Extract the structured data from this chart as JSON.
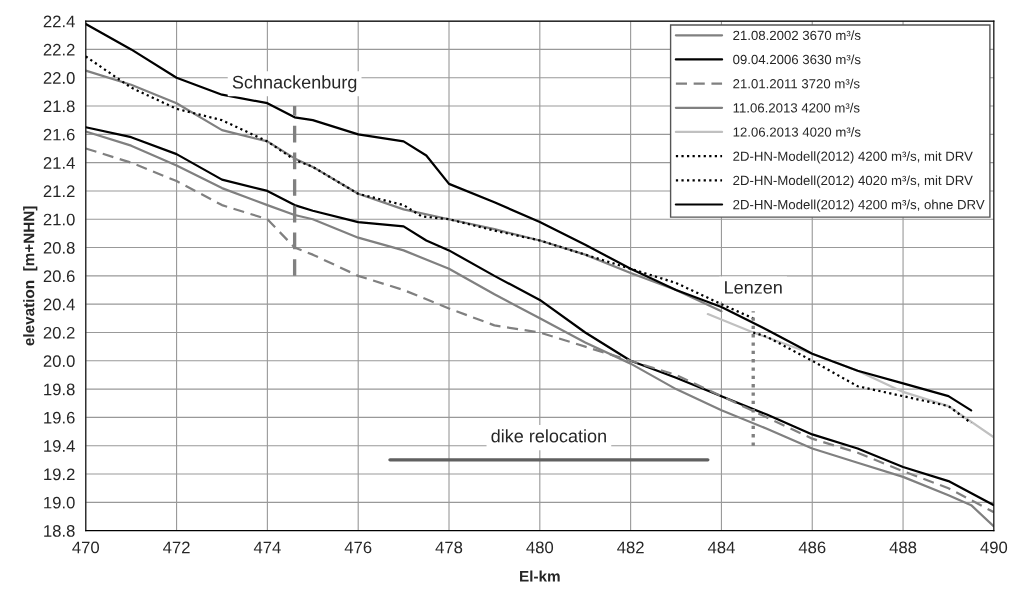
{
  "chart_data": {
    "type": "line",
    "xlabel": "El-km",
    "ylabel": "elevation  [m+NHN]",
    "xlim": [
      470,
      490
    ],
    "xticks": [
      470,
      472,
      474,
      476,
      478,
      480,
      482,
      484,
      486,
      488,
      490
    ],
    "ylim": [
      18.8,
      22.4
    ],
    "yticks": [
      {
        "value": 18.8,
        "label": "18.8"
      },
      {
        "value": 19.0,
        "label": "19.0"
      },
      {
        "value": 19.2,
        "label": "19.2"
      },
      {
        "value": 19.4,
        "label": "19.4"
      },
      {
        "value": 19.6,
        "label": "19.6"
      },
      {
        "value": 19.8,
        "label": "19.8"
      },
      {
        "value": 20.0,
        "label": "20.0"
      },
      {
        "value": 20.2,
        "label": "20.2"
      },
      {
        "value": 20.4,
        "label": "20.4"
      },
      {
        "value": 20.6,
        "label": "20.6"
      },
      {
        "value": 20.8,
        "label": "20.8"
      },
      {
        "value": 21.0,
        "label": "21.0"
      },
      {
        "value": 21.2,
        "label": "21.2"
      },
      {
        "value": 21.4,
        "label": "21.4"
      },
      {
        "value": 21.6,
        "label": "21.6"
      },
      {
        "value": 21.8,
        "label": "21.8"
      },
      {
        "value": 22.0,
        "label": "22.0"
      },
      {
        "value": 22.2,
        "label": "22.2"
      },
      {
        "value": 22.4,
        "label": "22.4"
      }
    ],
    "grid": true,
    "legend": "top right",
    "series": [
      {
        "name": "21.08.2002 3670 m³/s",
        "color": "#808080",
        "line_style": "solid",
        "x": [
          470,
          471,
          472,
          473,
          474,
          474.6,
          475,
          476,
          477,
          478,
          479,
          480,
          481,
          482,
          483,
          484,
          485,
          486,
          487,
          488,
          489,
          489.5,
          490
        ],
        "values": [
          21.62,
          21.52,
          21.38,
          21.22,
          21.1,
          21.03,
          21.0,
          20.87,
          20.78,
          20.65,
          20.47,
          20.3,
          20.13,
          19.98,
          19.8,
          19.65,
          19.52,
          19.38,
          19.28,
          19.18,
          19.05,
          18.98,
          18.83
        ]
      },
      {
        "name": "09.04.2006 3630 m³/s",
        "color": "#000000",
        "line_style": "solid",
        "x": [
          470,
          471,
          472,
          473,
          474,
          474.6,
          475,
          476,
          477,
          477.5,
          478,
          479,
          480,
          481,
          482,
          483,
          484,
          485,
          486,
          487,
          488,
          489,
          490
        ],
        "values": [
          21.65,
          21.58,
          21.46,
          21.28,
          21.2,
          21.1,
          21.06,
          20.98,
          20.95,
          20.85,
          20.78,
          20.6,
          20.43,
          20.2,
          20.0,
          19.88,
          19.75,
          19.62,
          19.48,
          19.38,
          19.25,
          19.15,
          18.98
        ]
      },
      {
        "name": "21.01.2011 3720 m³/s",
        "color": "#808080",
        "line_style": "dashed",
        "x": [
          470,
          471,
          472,
          473,
          474,
          474.6,
          475,
          476,
          477,
          478,
          479,
          480,
          481,
          482,
          483,
          484,
          485,
          486,
          487,
          488,
          489,
          490
        ],
        "values": [
          21.5,
          21.4,
          21.27,
          21.1,
          21.0,
          20.8,
          20.75,
          20.6,
          20.5,
          20.37,
          20.25,
          20.2,
          20.1,
          20.0,
          19.9,
          19.75,
          19.6,
          19.45,
          19.35,
          19.22,
          19.1,
          18.93
        ]
      },
      {
        "name": "11.06.2013 4200 m³/s",
        "color": "#808080",
        "line_style": "solid",
        "x": [
          470,
          471,
          472,
          473,
          474,
          474.6,
          475,
          476,
          477,
          478,
          479,
          480,
          481,
          482,
          483,
          484
        ],
        "values": [
          22.05,
          21.95,
          21.82,
          21.63,
          21.55,
          21.43,
          21.37,
          21.18,
          21.07,
          21.0,
          20.93,
          20.85,
          20.75,
          20.62,
          20.5,
          20.35
        ]
      },
      {
        "name": "12.06.2013 4020 m³/s",
        "color": "#c0c0c0",
        "line_style": "solid",
        "x": [
          483.7,
          484.7,
          486,
          487,
          488,
          489,
          490
        ],
        "values": [
          20.33,
          20.2,
          20.05,
          19.93,
          19.78,
          19.68,
          19.46
        ]
      },
      {
        "name": "2D-HN-Modell(2012) 4200 m³/s, mit DRV",
        "color": "#000000",
        "line_style": "dotted",
        "x": [
          470,
          471,
          472,
          473,
          474,
          474.6,
          475,
          476,
          477,
          477.4,
          478,
          479,
          480,
          481,
          482,
          483,
          484,
          484.7
        ],
        "values": [
          22.15,
          21.93,
          21.78,
          21.7,
          21.55,
          21.42,
          21.37,
          21.18,
          21.1,
          21.02,
          21.0,
          20.92,
          20.85,
          20.75,
          20.65,
          20.55,
          20.4,
          20.3
        ]
      },
      {
        "name": "2D-HN-Modell(2012) 4020 m³/s, mit DRV",
        "color": "#000000",
        "line_style": "dotted",
        "x": [
          484.7,
          485,
          486,
          487,
          488,
          489,
          489.5
        ],
        "values": [
          20.2,
          20.17,
          20.0,
          19.82,
          19.75,
          19.68,
          19.56
        ]
      },
      {
        "name": "2D-HN-Modell(2012) 4200 m³/s, ohne DRV",
        "color": "#000000",
        "line_style": "solid",
        "x": [
          470,
          471,
          472,
          473,
          474,
          474.6,
          475,
          476,
          477,
          477.5,
          478,
          479,
          480,
          481,
          482,
          483,
          484,
          485,
          486,
          487,
          488,
          489,
          489.5
        ],
        "values": [
          22.38,
          22.2,
          22.0,
          21.88,
          21.82,
          21.72,
          21.7,
          21.6,
          21.55,
          21.45,
          21.25,
          21.12,
          20.98,
          20.82,
          20.65,
          20.5,
          20.38,
          20.22,
          20.05,
          19.93,
          19.84,
          19.75,
          19.65
        ]
      },
      {
        "color": "#808080",
        "line_style": "dashed",
        "x": [
          474.6,
          474.6
        ],
        "values": [
          20.6,
          21.8
        ]
      },
      {
        "color": "#808080",
        "line_style": "dotted",
        "x": [
          484.7,
          484.7
        ],
        "values": [
          19.4,
          20.35
        ]
      },
      {
        "color": "#606060",
        "line_style": "solid",
        "x": [
          476.7,
          483.7
        ],
        "values": [
          19.3,
          19.3
        ]
      }
    ],
    "annotations": [
      "Schnackenburg",
      "Lenzen",
      "dike relocation"
    ]
  }
}
